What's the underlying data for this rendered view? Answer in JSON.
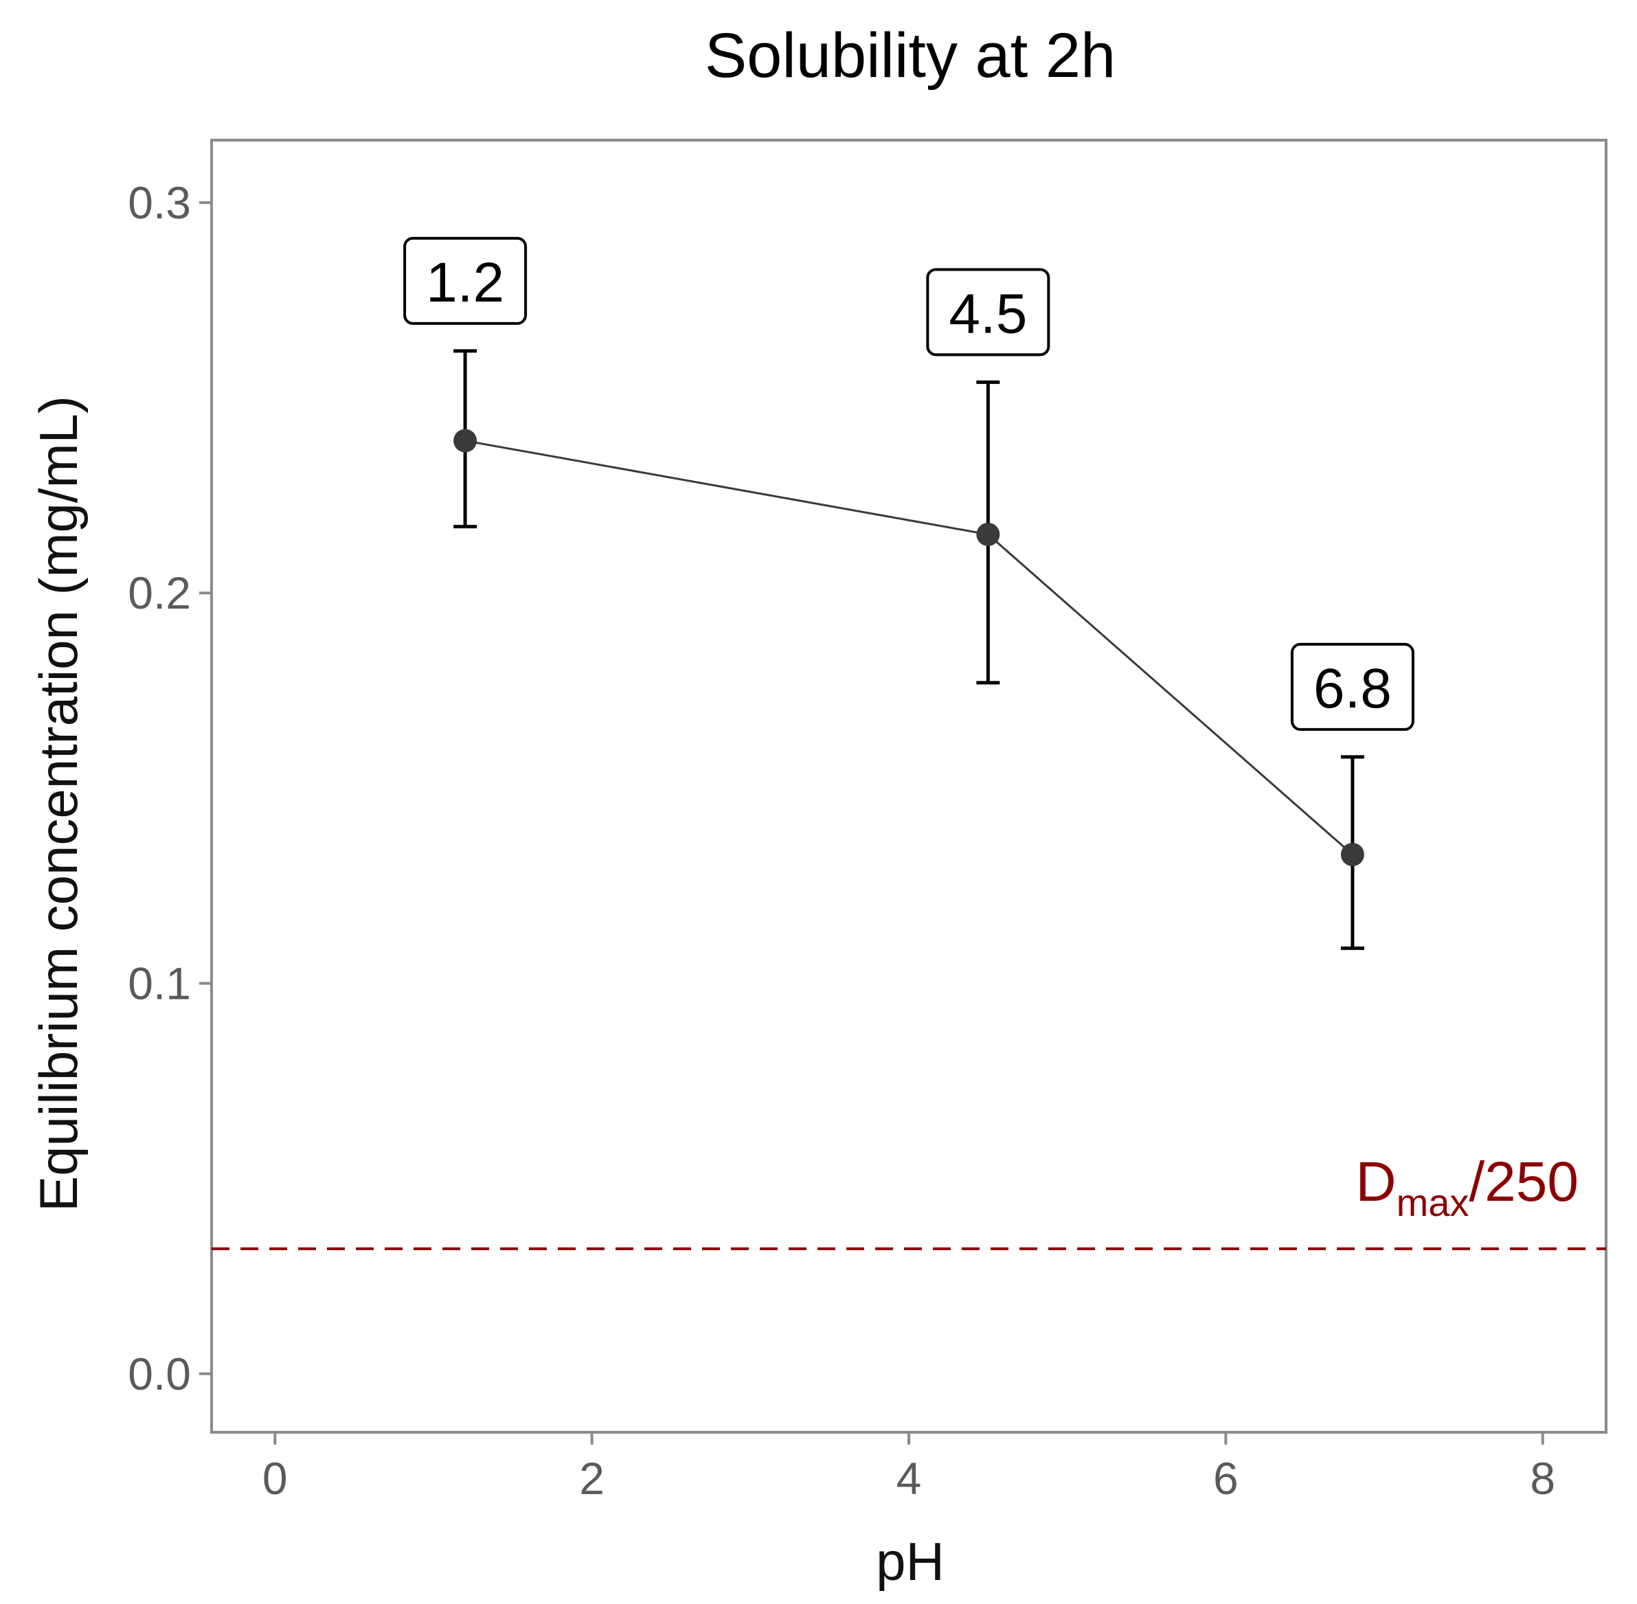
{
  "chart_data": {
    "type": "line",
    "title": "Solubility at 2h",
    "xlabel": "pH",
    "ylabel": "Equilibrium concentration (mg/mL)",
    "xlim": [
      -0.4,
      8.4
    ],
    "ylim": [
      -0.015,
      0.316
    ],
    "x_ticks": [
      0,
      2,
      4,
      6,
      8
    ],
    "x_tick_labels": [
      "0",
      "2",
      "4",
      "6",
      "8"
    ],
    "y_ticks": [
      0.0,
      0.1,
      0.2,
      0.3
    ],
    "y_tick_labels": [
      "0.0",
      "0.1",
      "0.2",
      "0.3"
    ],
    "grid": false,
    "series": [
      {
        "name": "Solubility",
        "x": [
          1.2,
          4.5,
          6.8
        ],
        "y": [
          0.239,
          0.215,
          0.133
        ],
        "error_low": [
          0.217,
          0.177,
          0.109
        ],
        "error_high": [
          0.262,
          0.254,
          0.158
        ],
        "labels": [
          "1.2",
          "4.5",
          "6.8"
        ],
        "color": "#3a3a3a"
      }
    ],
    "reference_line": {
      "y": 0.032,
      "label_main": "D",
      "label_sub": "max",
      "label_rest": "/250",
      "color": "#8b0000",
      "style": "dashed"
    },
    "frame_color": "#8a8a8a"
  }
}
